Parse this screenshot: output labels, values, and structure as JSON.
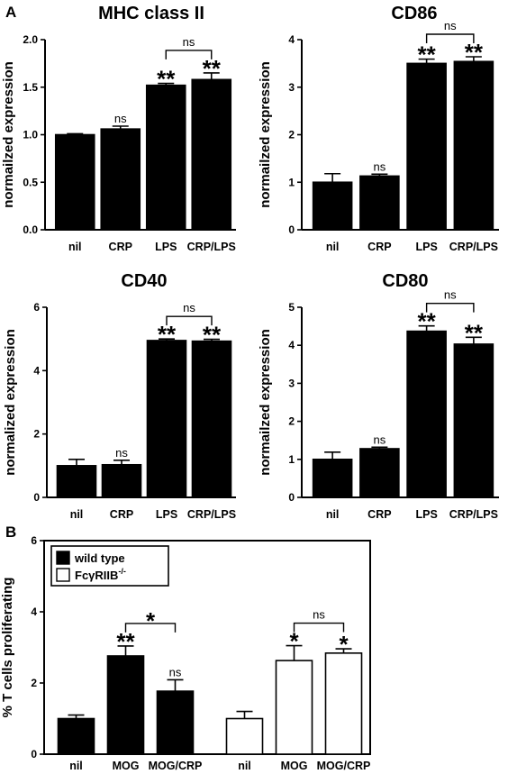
{
  "panels": {
    "A": "A",
    "B": "B"
  },
  "chart_data": [
    {
      "type": "bar",
      "panel": "A",
      "title": "MHC class II",
      "ylabel": "normailzed expression",
      "ylim": [
        0,
        2.0
      ],
      "yticks": [
        "0.0",
        "0.5",
        "1.0",
        "1.5",
        "2.0"
      ],
      "categories": [
        "nil",
        "CRP",
        "LPS",
        "CRP/LPS"
      ],
      "values": [
        1.0,
        1.06,
        1.52,
        1.58
      ],
      "errors": [
        0.01,
        0.03,
        0.02,
        0.07
      ],
      "marks": [
        "",
        "ns",
        "**",
        "**"
      ],
      "comparisons": [
        {
          "from": 2,
          "to": 3,
          "label": "ns"
        }
      ],
      "fill": "#000000"
    },
    {
      "type": "bar",
      "panel": "A",
      "title": "CD86",
      "ylabel": "normailzed expression",
      "ylim": [
        0,
        4
      ],
      "yticks": [
        "0",
        "1",
        "2",
        "3",
        "4"
      ],
      "categories": [
        "nil",
        "CRP",
        "LPS",
        "CRP/LPS"
      ],
      "values": [
        1.0,
        1.13,
        3.5,
        3.54
      ],
      "errors": [
        0.18,
        0.04,
        0.09,
        0.1
      ],
      "marks": [
        "",
        "ns",
        "**",
        "**"
      ],
      "comparisons": [
        {
          "from": 2,
          "to": 3,
          "label": "ns"
        }
      ],
      "fill": "#000000"
    },
    {
      "type": "bar",
      "panel": "A",
      "title": "CD40",
      "ylabel": "normalized expression",
      "ylim": [
        0,
        6
      ],
      "yticks": [
        "0",
        "2",
        "4",
        "6"
      ],
      "categories": [
        "nil",
        "CRP",
        "LPS",
        "CRP/LPS"
      ],
      "values": [
        1.0,
        1.03,
        4.95,
        4.93
      ],
      "errors": [
        0.2,
        0.14,
        0.05,
        0.06
      ],
      "marks": [
        "",
        "ns",
        "**",
        "**"
      ],
      "comparisons": [
        {
          "from": 2,
          "to": 3,
          "label": "ns"
        }
      ],
      "fill": "#000000"
    },
    {
      "type": "bar",
      "panel": "A",
      "title": "CD80",
      "ylabel": "normailzed expression",
      "ylim": [
        0,
        5
      ],
      "yticks": [
        "0",
        "1",
        "2",
        "3",
        "4",
        "5"
      ],
      "categories": [
        "nil",
        "CRP",
        "LPS",
        "CRP/LPS"
      ],
      "values": [
        1.0,
        1.28,
        4.37,
        4.03
      ],
      "errors": [
        0.19,
        0.04,
        0.14,
        0.18
      ],
      "marks": [
        "",
        "ns",
        "**",
        "**"
      ],
      "comparisons": [
        {
          "from": 2,
          "to": 3,
          "label": "ns"
        }
      ],
      "fill": "#000000"
    },
    {
      "type": "bar",
      "panel": "B",
      "title": "",
      "ylabel": "% T cells proliferating",
      "ylim": [
        0,
        6
      ],
      "yticks": [
        "0",
        "2",
        "4",
        "6"
      ],
      "categories": [
        "nil",
        "MOG",
        "MOG/CRP",
        "nil",
        "MOG",
        "MOG/CRP"
      ],
      "values": [
        1.0,
        2.76,
        1.77,
        1.0,
        2.63,
        2.84
      ],
      "errors": [
        0.1,
        0.28,
        0.32,
        0.2,
        0.42,
        0.12
      ],
      "groups": [
        0,
        0,
        0,
        1,
        1,
        1
      ],
      "marks": [
        "",
        "**",
        "ns",
        "",
        "*",
        "*"
      ],
      "comparisons": [
        {
          "from": 1,
          "to": 2,
          "label": "*"
        },
        {
          "from": 4,
          "to": 5,
          "label": "ns"
        }
      ],
      "series": [
        {
          "name": "wild type",
          "color": "#000000"
        },
        {
          "name": "FcγRIIB",
          "superscript": "-/-",
          "color": "#ffffff"
        }
      ],
      "legend": "top-left"
    }
  ]
}
